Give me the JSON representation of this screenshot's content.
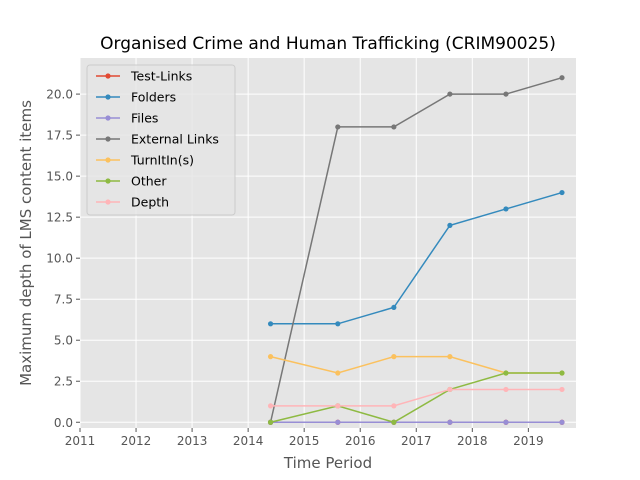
{
  "chart_data": {
    "type": "line",
    "title": "Organised Crime and Human Trafficking (CRIM90025)",
    "xlabel": "Time Period",
    "ylabel": "Maximum depth of LMS content items",
    "xlim": [
      2011.0,
      2019.85
    ],
    "ylim": [
      -0.35,
      22.2
    ],
    "xticks": [
      "2011",
      "2012",
      "2013",
      "2014",
      "2015",
      "2016",
      "2017",
      "2018",
      "2019"
    ],
    "yticks": [
      "0.0",
      "2.5",
      "5.0",
      "7.5",
      "10.0",
      "12.5",
      "15.0",
      "17.5",
      "20.0"
    ],
    "grid": true,
    "legend_position": "upper-left",
    "x": [
      2014.4,
      2015.6,
      2016.6,
      2017.6,
      2018.6,
      2019.6
    ],
    "series": [
      {
        "name": "Test-Links",
        "color": "#E24A33",
        "values": [
          0,
          0,
          0,
          0,
          0,
          0
        ]
      },
      {
        "name": "Folders",
        "color": "#348ABD",
        "values": [
          6,
          6,
          7,
          12,
          13,
          14
        ]
      },
      {
        "name": "Files",
        "color": "#988ED5",
        "values": [
          0,
          0,
          0,
          0,
          0,
          0
        ]
      },
      {
        "name": "External Links",
        "color": "#777777",
        "values": [
          0,
          18,
          18,
          20,
          20,
          21
        ]
      },
      {
        "name": "TurnItIn(s)",
        "color": "#FBC15E",
        "values": [
          4,
          3,
          4,
          4,
          3,
          3
        ]
      },
      {
        "name": "Other",
        "color": "#8EBA42",
        "values": [
          0,
          1,
          0,
          2,
          3,
          3
        ]
      },
      {
        "name": "Depth",
        "color": "#FFB5B8",
        "values": [
          1,
          1,
          1,
          2,
          2,
          2
        ]
      }
    ]
  }
}
